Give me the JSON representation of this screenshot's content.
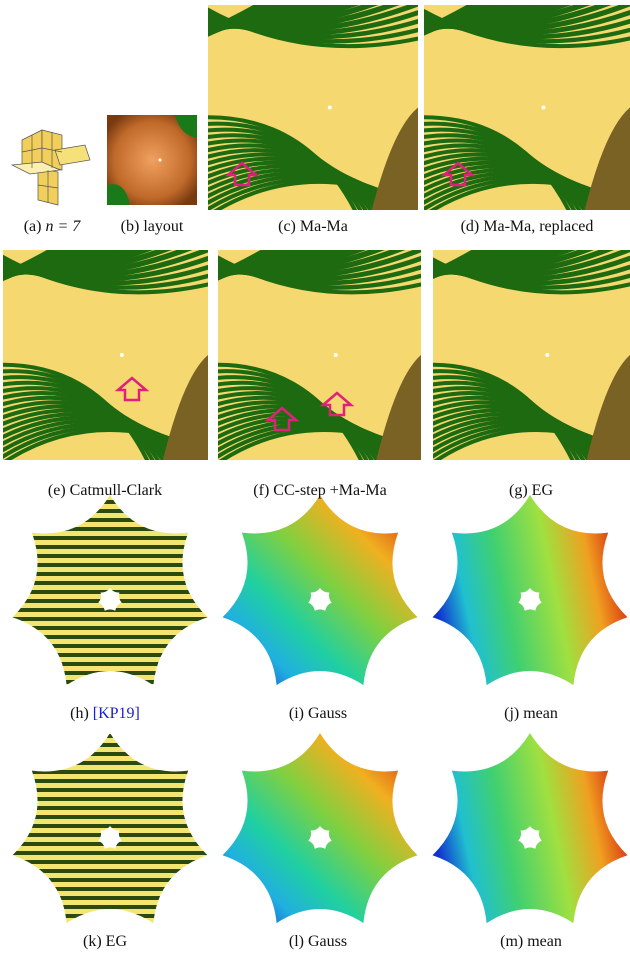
{
  "captions": [
    {
      "label": "(a)",
      "text": "n = 7"
    },
    {
      "label": "(b)",
      "text": "layout"
    },
    {
      "label": "(c)",
      "text": "Ma-Ma"
    },
    {
      "label": "(d)",
      "text": "Ma-Ma, replaced"
    },
    {
      "label": "(e)",
      "text": "Catmull-Clark"
    },
    {
      "label": "(f)",
      "text": "CC-step +Ma-Ma"
    },
    {
      "label": "(g)",
      "text": "EG"
    },
    {
      "label": "(h)",
      "text": "[KP19]"
    },
    {
      "label": "(i)",
      "text": "Gauss"
    },
    {
      "label": "(j)",
      "text": "mean"
    },
    {
      "label": "(k)",
      "text": "EG"
    },
    {
      "label": "(l)",
      "text": "Gauss"
    },
    {
      "label": "(m)",
      "text": "mean"
    }
  ]
}
